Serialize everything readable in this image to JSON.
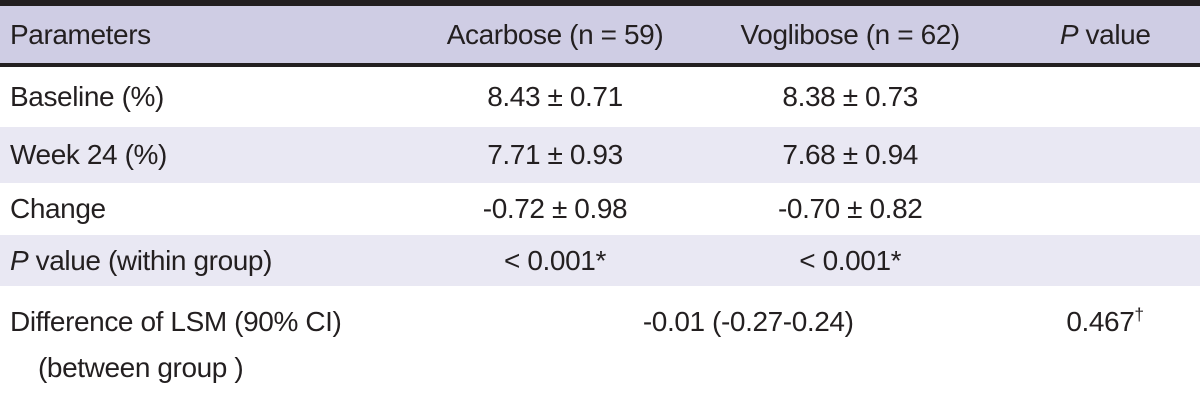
{
  "header": {
    "parameters": "Parameters",
    "acarbose": "Acarbose (n = 59)",
    "voglibose": "Voglibose (n = 62)",
    "p_italic": "P",
    "p_rest": " value"
  },
  "rows": {
    "baseline": {
      "label": "Baseline (%)",
      "acarbose": "8.43 ± 0.71",
      "voglibose": "8.38 ± 0.73",
      "p_value": ""
    },
    "week24": {
      "label": "Week 24 (%)",
      "acarbose": "7.71 ± 0.93",
      "voglibose": "7.68 ± 0.94",
      "p_value": ""
    },
    "change": {
      "label": "Change",
      "acarbose": "-0.72 ± 0.98",
      "voglibose": "-0.70 ± 0.82",
      "p_value": ""
    },
    "p_within_group": {
      "label_italic": "P",
      "label_rest": " value (within group)",
      "acarbose": "< 0.001*",
      "voglibose": "< 0.001*",
      "p_value": ""
    },
    "difference": {
      "label_line1": "Difference of LSM (90% CI)",
      "label_line2": "(between group )",
      "merged_value": "-0.01 (-0.27-0.24)",
      "p_value": "0.467",
      "p_sup": "†"
    }
  },
  "colors": {
    "header_bg": "#cfcde4",
    "row_tint_bg": "#e9e8f3",
    "ink": "#231f20",
    "row_bg": "#ffffff"
  }
}
